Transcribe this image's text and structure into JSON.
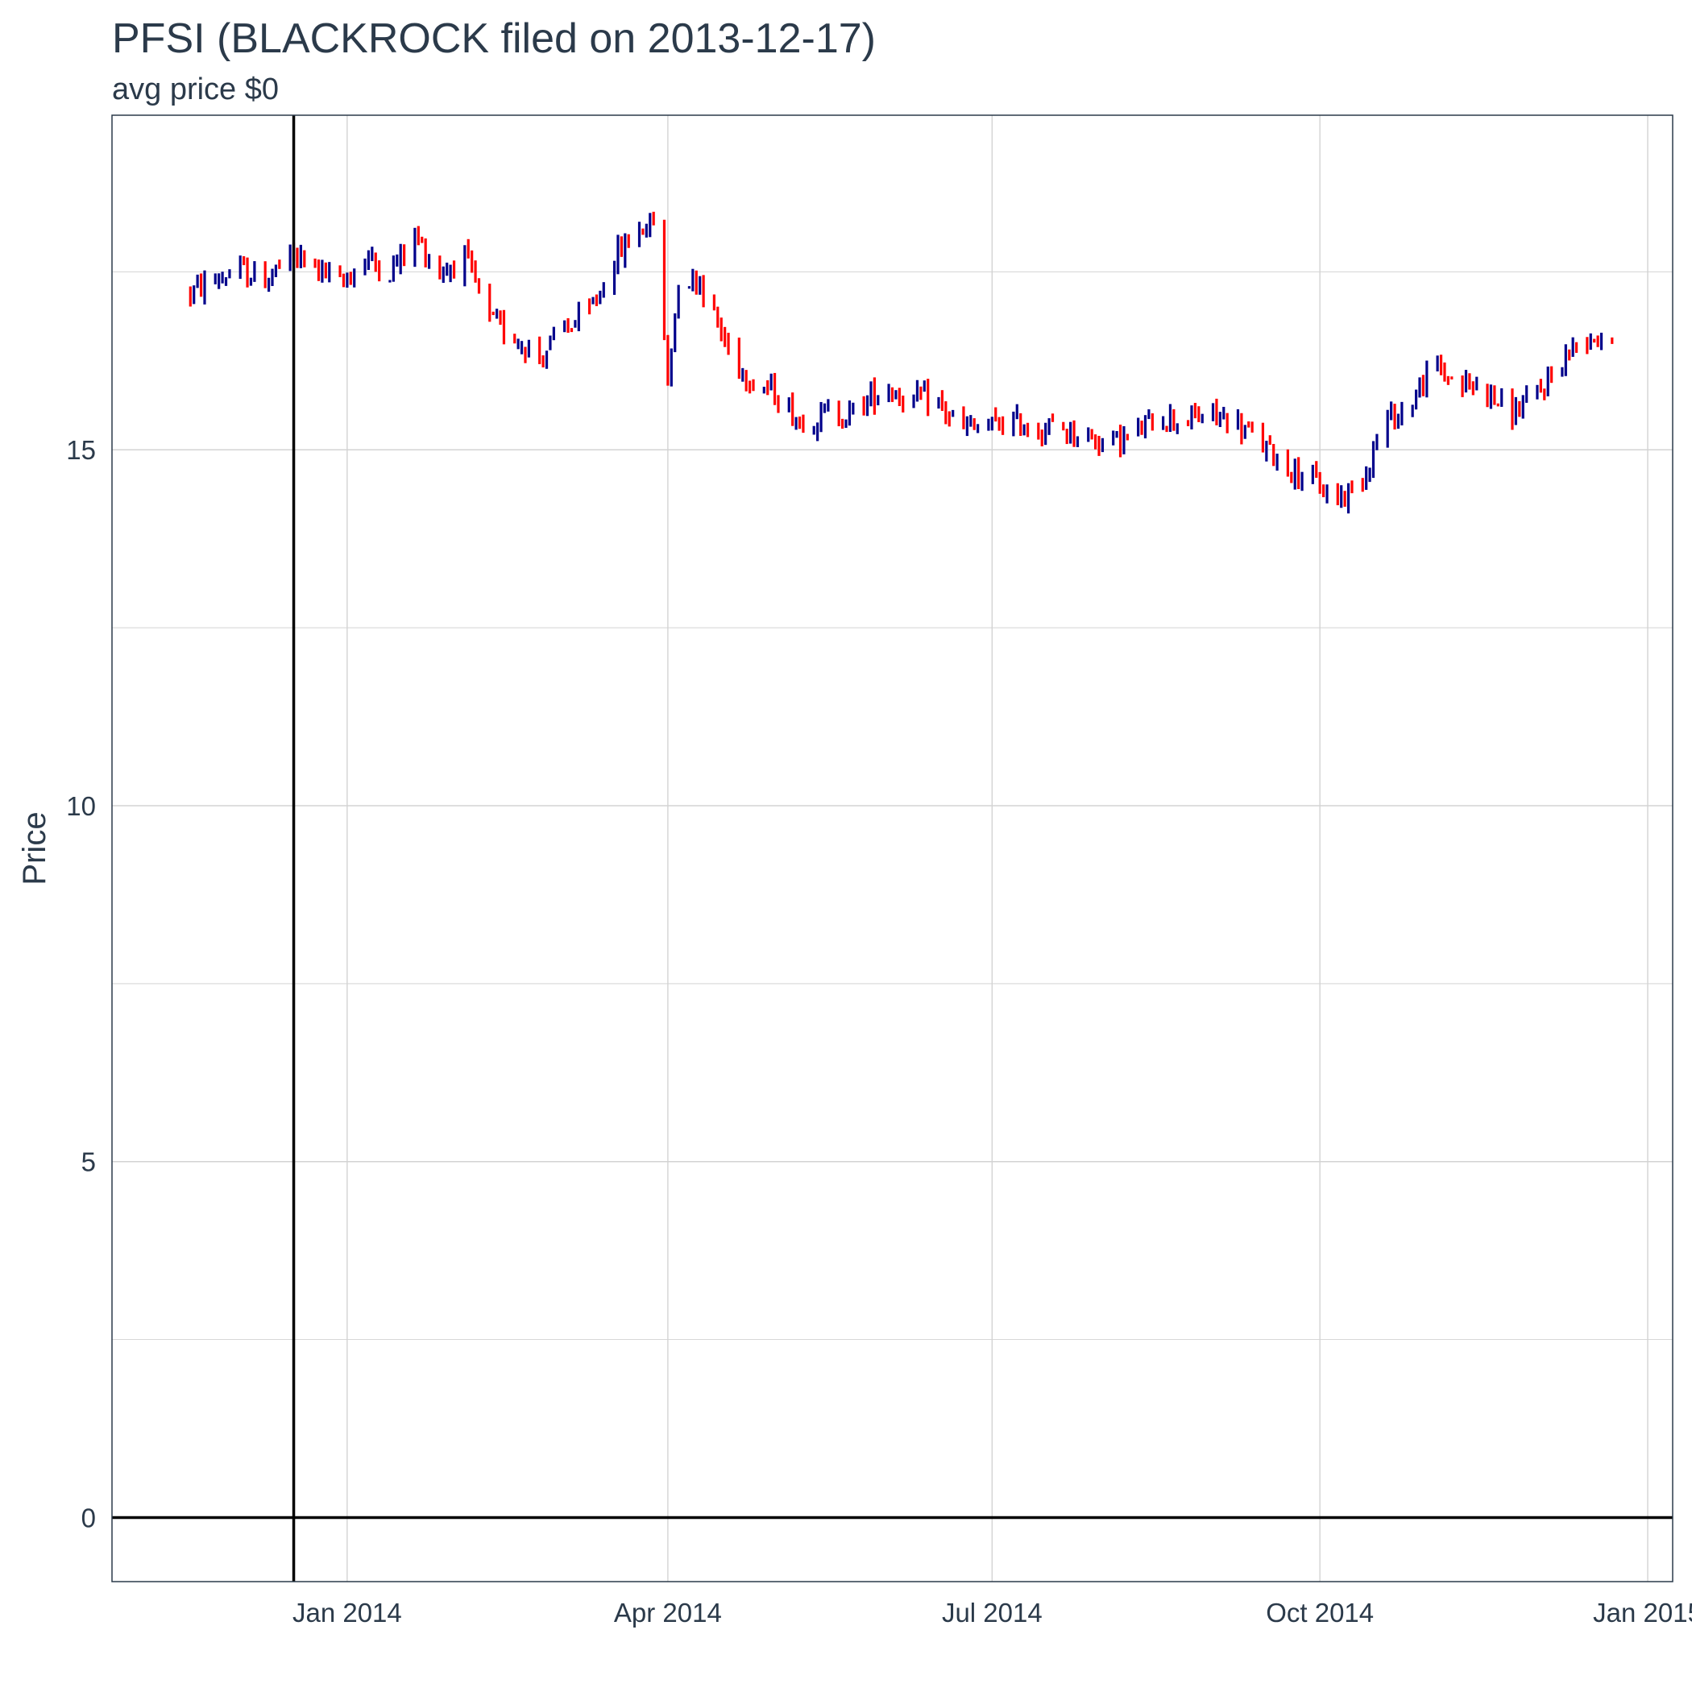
{
  "chart_data": {
    "type": "candlestick",
    "title": "PFSI (BLACKROCK filed on 2013-12-17)",
    "subtitle": "avg price $0",
    "xlabel": "",
    "ylabel": "Price",
    "ylim": [
      -0.9,
      19.7
    ],
    "xlim": [
      "2013-10-27",
      "2015-01-08"
    ],
    "y_ticks": [
      0,
      5,
      10,
      15
    ],
    "x_ticks": [
      {
        "date": "2014-01-01",
        "label": "Jan 2014"
      },
      {
        "date": "2014-04-01",
        "label": "Apr 2014"
      },
      {
        "date": "2014-07-01",
        "label": "Jul 2014"
      },
      {
        "date": "2014-10-01",
        "label": "Oct 2014"
      },
      {
        "date": "2015-01-01",
        "label": "Jan 2015"
      }
    ],
    "grid": true,
    "reference_lines": {
      "vertical_date": "2013-12-17",
      "horizontal_value": 0
    },
    "colors": {
      "up": "#00008b",
      "down": "#ff0000",
      "grid": "#d3d3d3",
      "reference": "#000000",
      "text": "#2b3a4a",
      "border": "#2b3a4a"
    },
    "anchor_points": [
      [
        "2013-11-18",
        17.2
      ],
      [
        "2013-11-25",
        17.4
      ],
      [
        "2013-12-02",
        17.5
      ],
      [
        "2013-12-09",
        17.4
      ],
      [
        "2013-12-16",
        17.7
      ],
      [
        "2013-12-23",
        17.6
      ],
      [
        "2013-12-30",
        17.3
      ],
      [
        "2014-01-06",
        17.7
      ],
      [
        "2014-01-13",
        17.5
      ],
      [
        "2014-01-20",
        18.0
      ],
      [
        "2014-01-27",
        17.5
      ],
      [
        "2014-02-03",
        17.7
      ],
      [
        "2014-02-10",
        16.8
      ],
      [
        "2014-02-17",
        16.6
      ],
      [
        "2014-02-24",
        16.3
      ],
      [
        "2014-03-03",
        16.7
      ],
      [
        "2014-03-10",
        16.9
      ],
      [
        "2014-03-17",
        17.7
      ],
      [
        "2014-03-24",
        18.1
      ],
      [
        "2014-03-28",
        18.2
      ],
      [
        "2014-04-01",
        16.0
      ],
      [
        "2014-04-04",
        17.4
      ],
      [
        "2014-04-10",
        17.4
      ],
      [
        "2014-04-17",
        16.5
      ],
      [
        "2014-04-24",
        16.0
      ],
      [
        "2014-05-01",
        15.8
      ],
      [
        "2014-05-08",
        15.4
      ],
      [
        "2014-05-15",
        15.5
      ],
      [
        "2014-05-22",
        15.5
      ],
      [
        "2014-06-01",
        15.9
      ],
      [
        "2014-06-08",
        15.7
      ],
      [
        "2014-06-15",
        15.7
      ],
      [
        "2014-06-22",
        15.3
      ],
      [
        "2014-06-29",
        15.3
      ],
      [
        "2014-07-06",
        15.4
      ],
      [
        "2014-07-13",
        15.3
      ],
      [
        "2014-07-20",
        15.3
      ],
      [
        "2014-07-27",
        15.2
      ],
      [
        "2014-08-03",
        15.1
      ],
      [
        "2014-08-10",
        15.2
      ],
      [
        "2014-08-17",
        15.5
      ],
      [
        "2014-08-24",
        15.4
      ],
      [
        "2014-08-31",
        15.5
      ],
      [
        "2014-09-07",
        15.4
      ],
      [
        "2014-09-14",
        15.1
      ],
      [
        "2014-09-21",
        14.8
      ],
      [
        "2014-09-28",
        14.6
      ],
      [
        "2014-10-05",
        14.3
      ],
      [
        "2014-10-12",
        14.5
      ],
      [
        "2014-10-19",
        15.4
      ],
      [
        "2014-10-26",
        15.6
      ],
      [
        "2014-11-02",
        16.2
      ],
      [
        "2014-11-09",
        15.9
      ],
      [
        "2014-11-16",
        15.9
      ],
      [
        "2014-11-23",
        15.5
      ],
      [
        "2014-11-30",
        15.7
      ],
      [
        "2014-12-07",
        16.2
      ],
      [
        "2014-12-14",
        16.6
      ],
      [
        "2014-12-22",
        16.6
      ]
    ]
  }
}
